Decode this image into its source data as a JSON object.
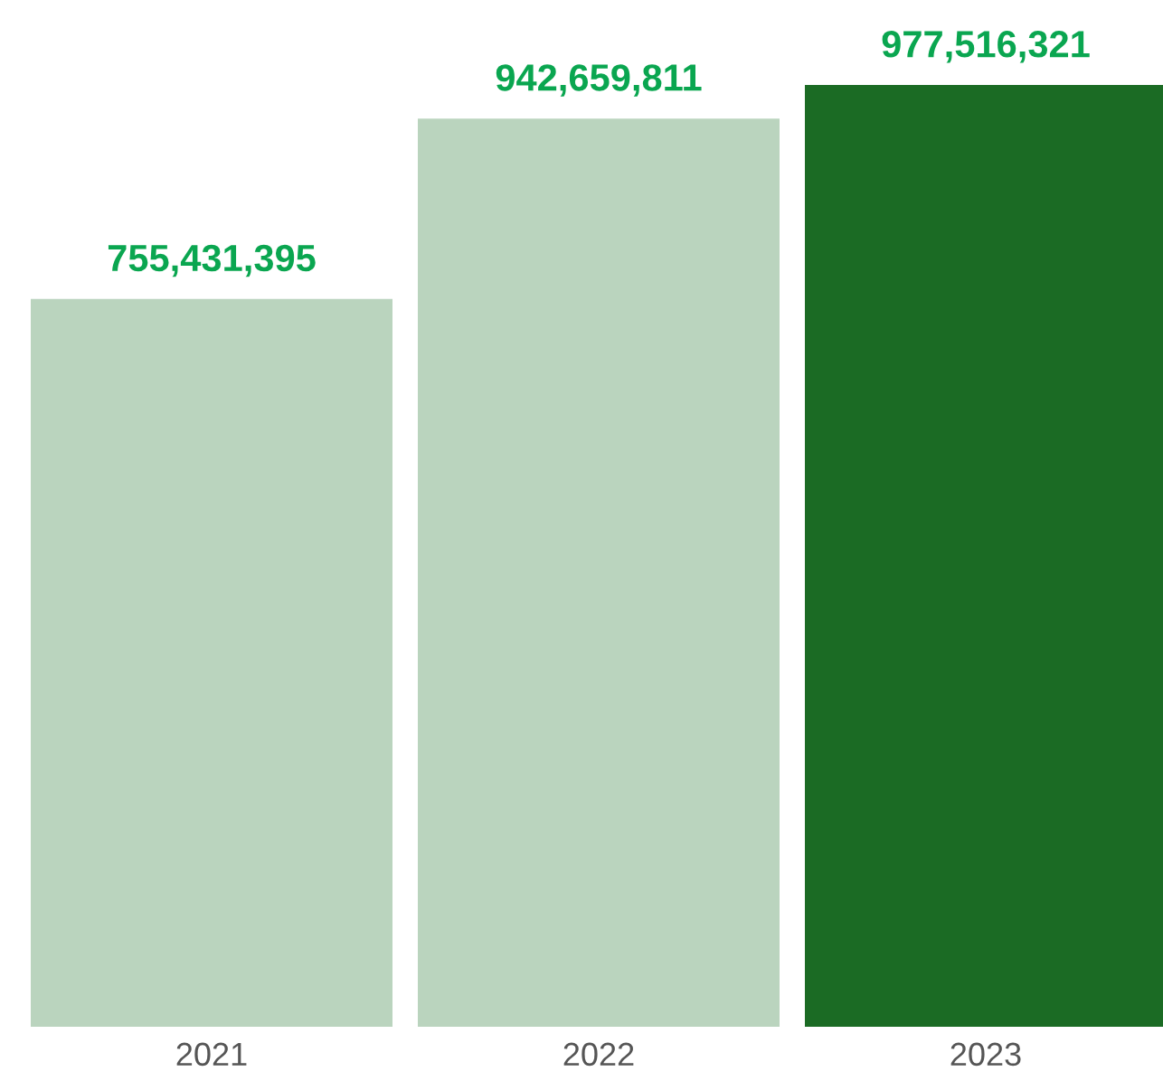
{
  "chart_data": {
    "type": "bar",
    "categories": [
      "2021",
      "2022",
      "2023"
    ],
    "values": [
      755431395,
      942659811,
      977516321
    ],
    "colors": [
      "#bad4be",
      "#bad4be",
      "#1b6b24"
    ],
    "value_labels": [
      "755,431,395",
      "942,659,811",
      "977,516,321"
    ],
    "grid": false,
    "legend": false
  }
}
